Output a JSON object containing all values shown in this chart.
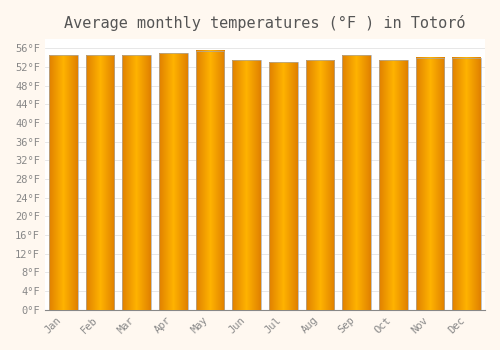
{
  "title": "Average monthly temperatures (°F ) in Totoró",
  "months": [
    "Jan",
    "Feb",
    "Mar",
    "Apr",
    "May",
    "Jun",
    "Jul",
    "Aug",
    "Sep",
    "Oct",
    "Nov",
    "Dec"
  ],
  "values": [
    54.5,
    54.5,
    54.5,
    55.0,
    55.5,
    53.5,
    53.0,
    53.5,
    54.5,
    53.5,
    54.0,
    54.0
  ],
  "bar_color_center": "#FFB300",
  "bar_color_edge": "#E08000",
  "background_color": "#FFF8F0",
  "plot_bg_color": "#FFFFFF",
  "grid_color": "#DDDDDD",
  "ylim": [
    0,
    58
  ],
  "yticks": [
    0,
    4,
    8,
    12,
    16,
    20,
    24,
    28,
    32,
    36,
    40,
    44,
    48,
    52,
    56
  ],
  "ylabel_format": "°F",
  "title_fontsize": 11,
  "tick_fontsize": 7.5,
  "font_family": "monospace"
}
